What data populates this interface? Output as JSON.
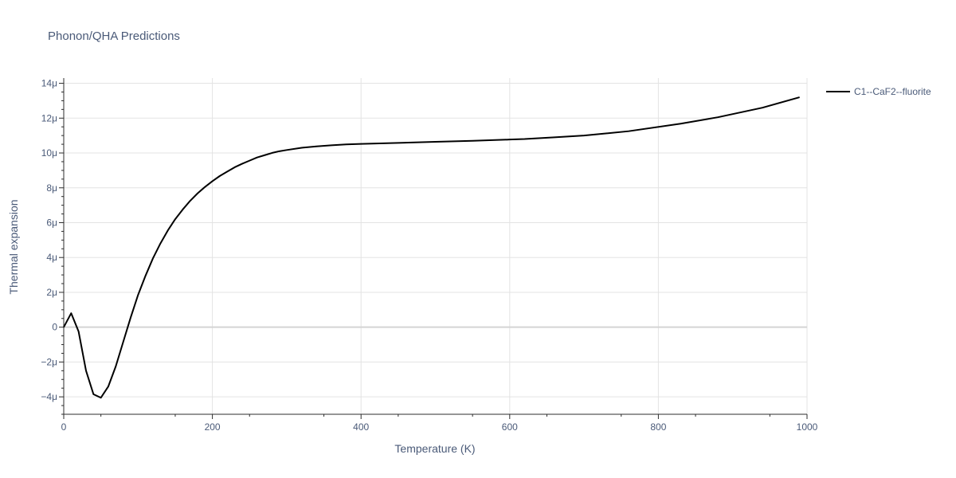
{
  "chart_data": {
    "type": "line",
    "title": "Phonon/QHA Predictions",
    "xlabel": "Temperature (K)",
    "ylabel": "Thermal expansion",
    "xlim": [
      0,
      1000
    ],
    "ylim": [
      -5,
      14.3
    ],
    "y_unit_suffix": "μ",
    "grid": true,
    "legend_position": "top-right",
    "x_ticks": [
      0,
      200,
      400,
      600,
      800,
      1000
    ],
    "x_tick_labels": [
      "0",
      "200",
      "400",
      "600",
      "800",
      "1000"
    ],
    "y_ticks": [
      -4,
      -2,
      0,
      2,
      4,
      6,
      8,
      10,
      12,
      14
    ],
    "y_tick_labels": [
      "−4μ",
      "−2μ",
      "0",
      "2μ",
      "4μ",
      "6μ",
      "8μ",
      "10μ",
      "12μ",
      "14μ"
    ],
    "series": [
      {
        "name": "C1--CaF2--fluorite",
        "color": "#000000",
        "x": [
          0,
          10,
          20,
          30,
          40,
          50,
          60,
          70,
          80,
          90,
          100,
          110,
          120,
          130,
          140,
          150,
          160,
          170,
          180,
          190,
          200,
          210,
          220,
          230,
          240,
          250,
          260,
          270,
          280,
          290,
          300,
          320,
          340,
          360,
          380,
          400,
          450,
          500,
          550,
          600,
          620,
          660,
          700,
          760,
          830,
          880,
          940,
          990
        ],
        "y": [
          0,
          0.8,
          -0.25,
          -2.5,
          -3.85,
          -4.05,
          -3.4,
          -2.25,
          -0.85,
          0.55,
          1.85,
          2.95,
          3.95,
          4.8,
          5.55,
          6.2,
          6.75,
          7.25,
          7.68,
          8.05,
          8.38,
          8.68,
          8.93,
          9.18,
          9.38,
          9.56,
          9.74,
          9.87,
          10.0,
          10.1,
          10.17,
          10.3,
          10.38,
          10.44,
          10.49,
          10.52,
          10.58,
          10.64,
          10.7,
          10.77,
          10.8,
          10.9,
          11.0,
          11.25,
          11.68,
          12.05,
          12.6,
          13.2
        ]
      }
    ]
  }
}
